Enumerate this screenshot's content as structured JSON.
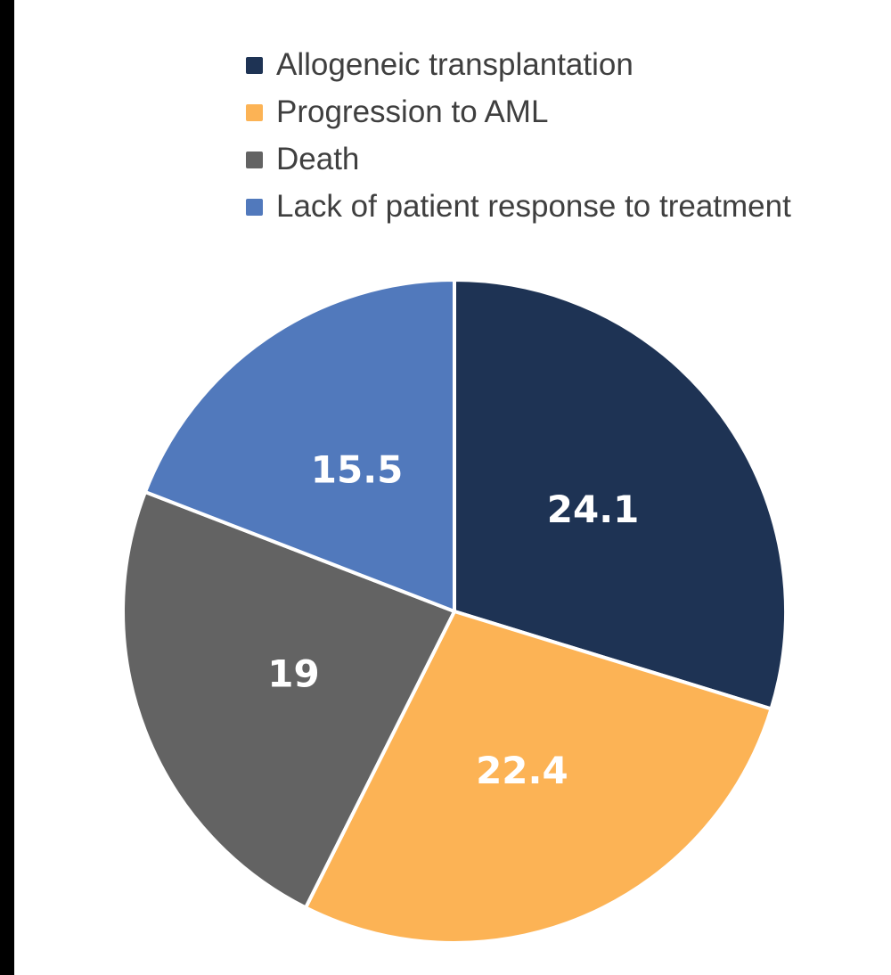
{
  "page": {
    "background": "#FFFFFF",
    "left_edge_bar_color": "#000000"
  },
  "chart_data": {
    "type": "pie",
    "title": "",
    "legend_position": "top-left",
    "direction": "clockwise",
    "start_angle_deg": 0,
    "categories": [
      "Allogeneic transplantation",
      "Progression to AML",
      "Death",
      "Lack of patient response to treatment"
    ],
    "values": [
      24.1,
      22.4,
      19,
      15.5
    ],
    "value_labels": [
      "24.1",
      "22.4",
      "19",
      "15.5"
    ],
    "colors": [
      "#1E3354",
      "#FCB355",
      "#636363",
      "#5179BC"
    ],
    "slice_label_color": "#FFFFFF",
    "slice_separator_color": "#FFFFFF",
    "legend_text_color": "#3F3F3F"
  }
}
